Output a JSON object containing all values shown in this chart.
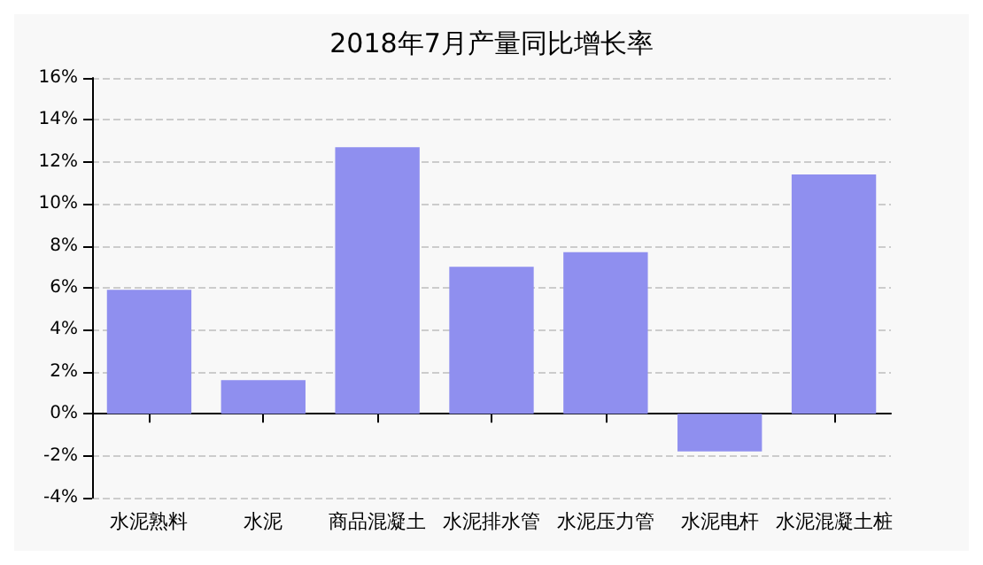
{
  "chart_data": {
    "type": "bar",
    "title": "2018年7月产量同比增长率",
    "categories": [
      "水泥熟料",
      "水泥",
      "商品混凝土",
      "水泥排水管",
      "水泥压力管",
      "水泥电杆",
      "水泥混凝土桩"
    ],
    "values": [
      5.9,
      1.6,
      12.7,
      7.0,
      7.7,
      -1.8,
      11.4
    ],
    "color": "#8f8fef",
    "ylim": [
      -4,
      16
    ],
    "yticks": [
      {
        "value": -4,
        "label": "-4%"
      },
      {
        "value": -2,
        "label": "-2%"
      },
      {
        "value": 0,
        "label": "0%"
      },
      {
        "value": 2,
        "label": "2%"
      },
      {
        "value": 4,
        "label": "4%"
      },
      {
        "value": 6,
        "label": "6%"
      },
      {
        "value": 8,
        "label": "8%"
      },
      {
        "value": 10,
        "label": "10%"
      },
      {
        "value": 12,
        "label": "12%"
      },
      {
        "value": 14,
        "label": "14%"
      },
      {
        "value": 16,
        "label": "16%"
      }
    ],
    "grid": "y"
  }
}
